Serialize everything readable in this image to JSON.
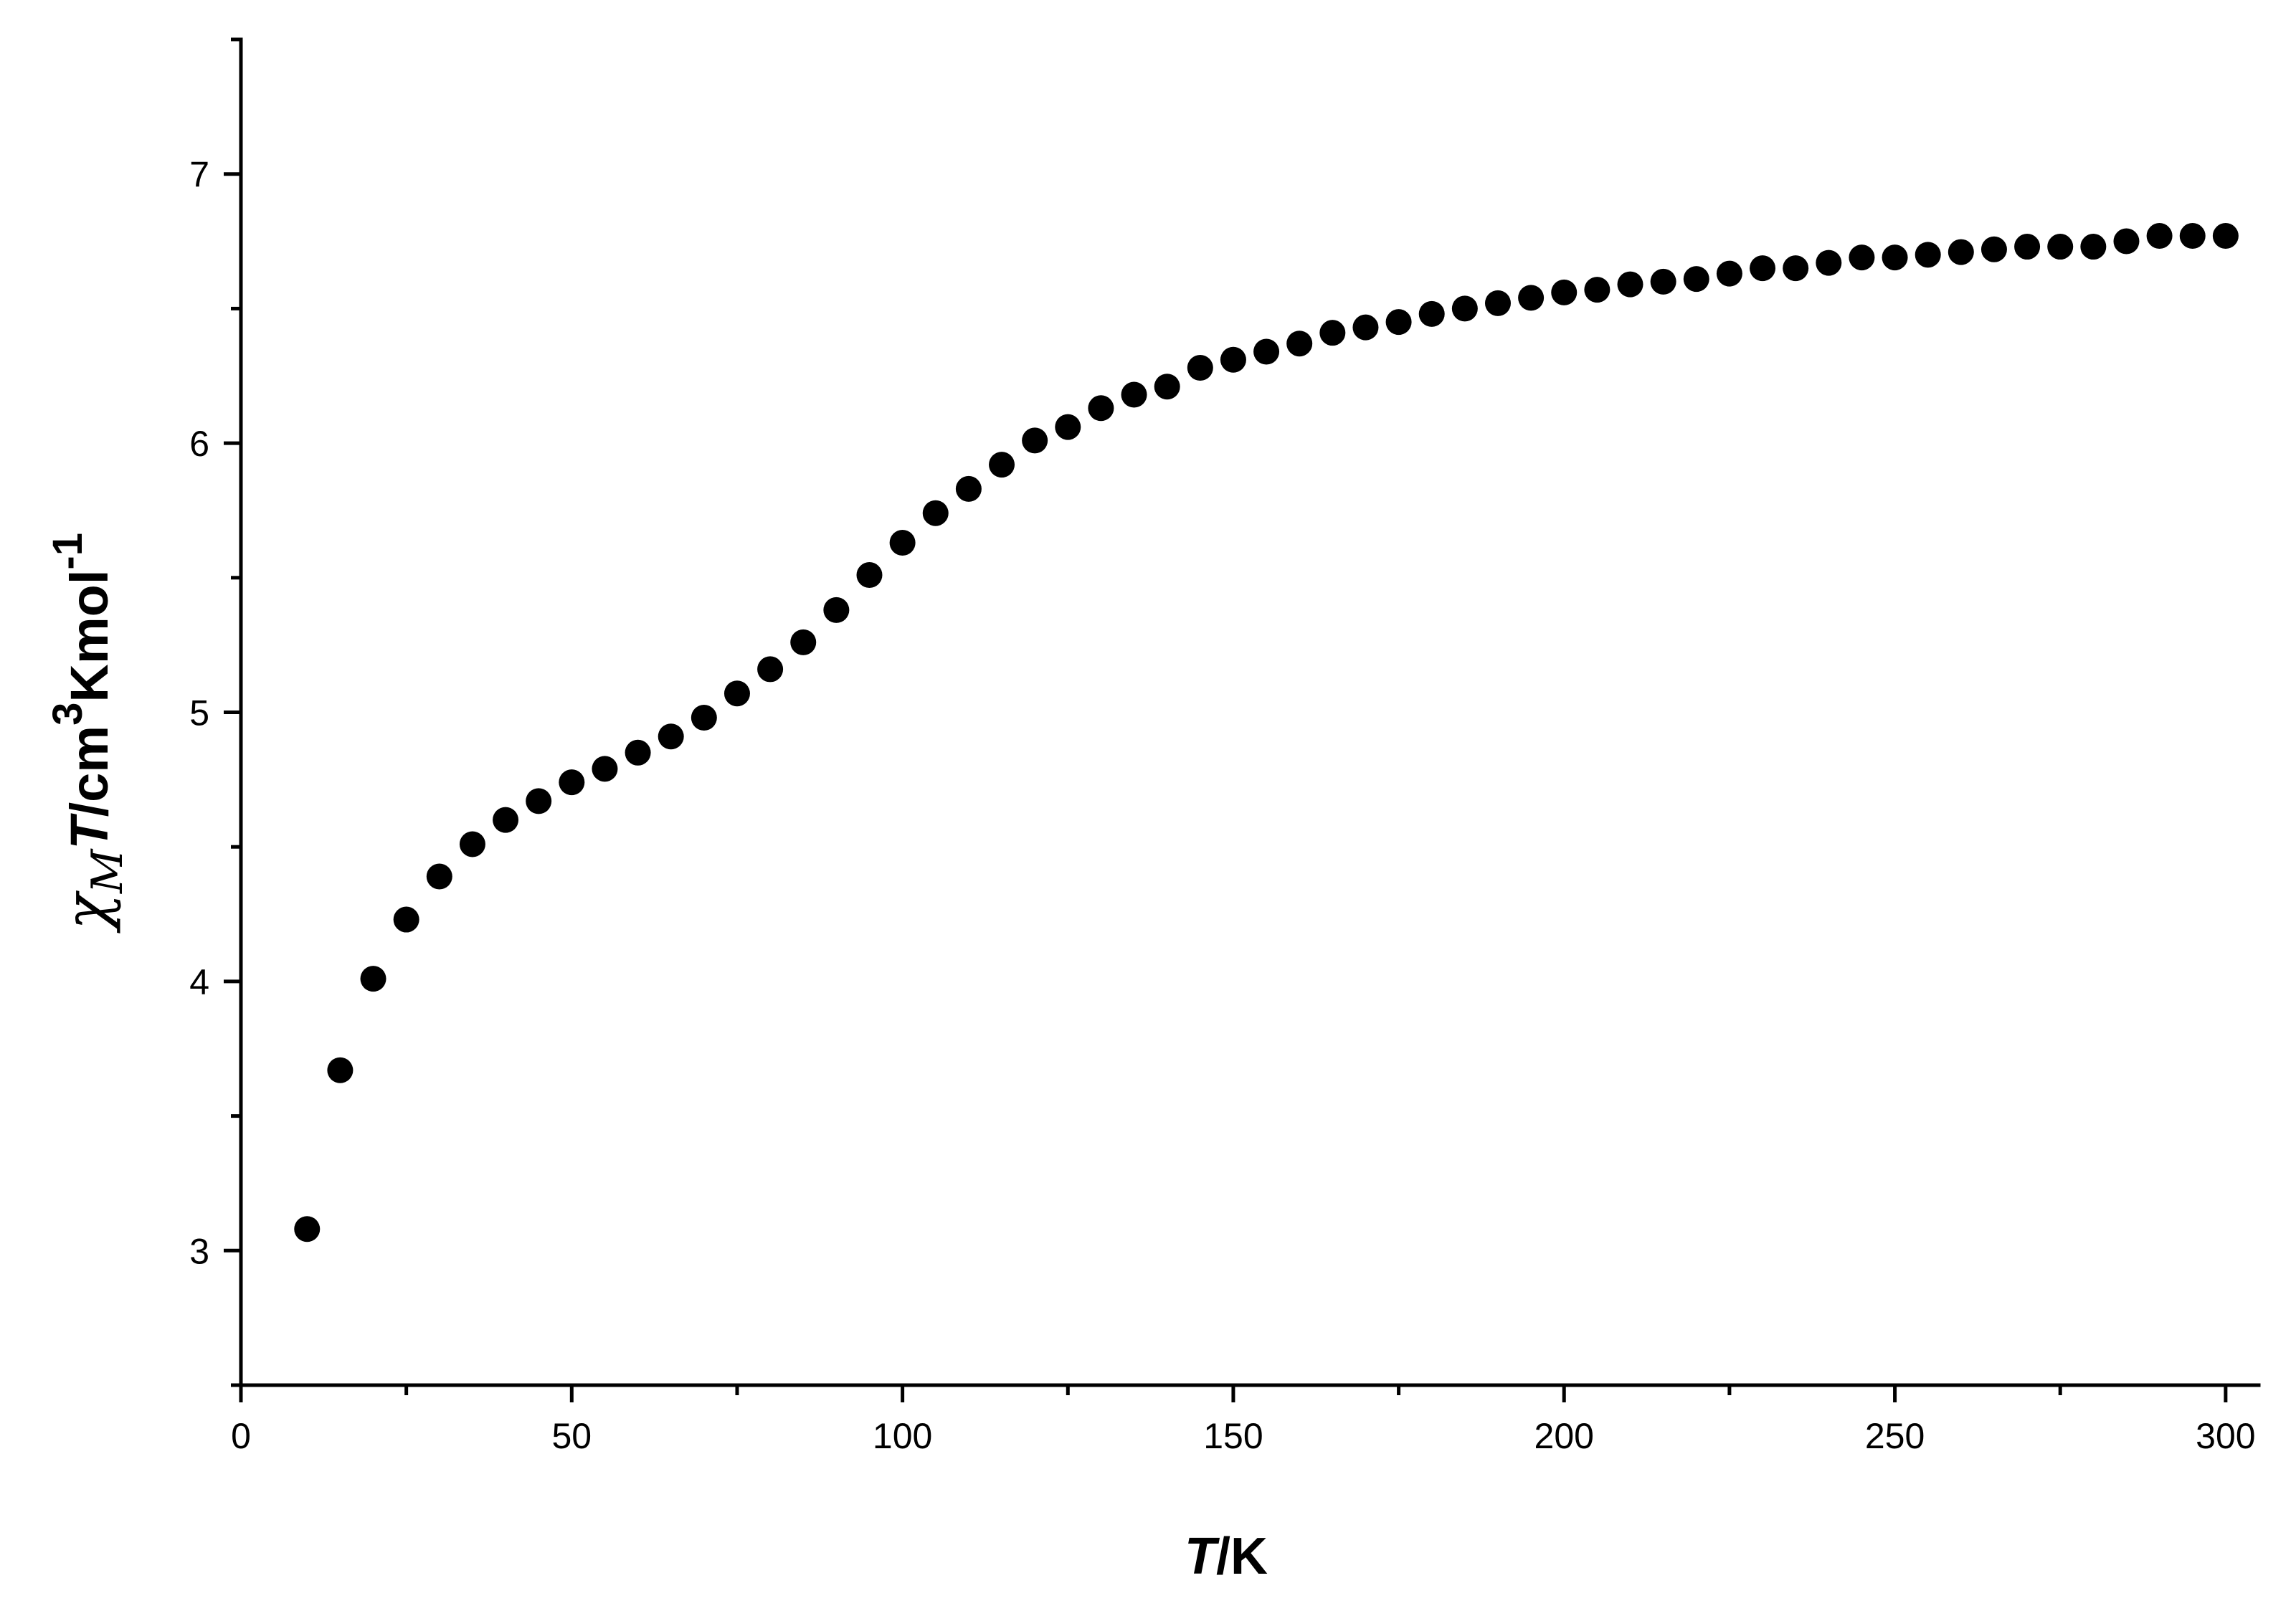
{
  "chart_data": {
    "type": "scatter",
    "xlabel": "T/K",
    "ylabel": "χMT/cm3Kmol-1",
    "xlabel_parts": {
      "italic": "T",
      "rest": "/K"
    },
    "ylabel_parts": {
      "chi": "χ",
      "sub": "M",
      "italic": "T",
      "unit": "/cm",
      "sup1": "3",
      "unit2": "Kmol",
      "sup2": "-1"
    },
    "xlim": [
      0,
      305
    ],
    "ylim": [
      2.5,
      7.5
    ],
    "xticks": [
      0,
      50,
      100,
      150,
      200,
      250,
      300
    ],
    "yticks": [
      3,
      4,
      5,
      6,
      7
    ],
    "grid": false,
    "marker_color": "#000000",
    "x": [
      10,
      15,
      20,
      25,
      30,
      35,
      40,
      45,
      50,
      55,
      60,
      65,
      70,
      75,
      80,
      85,
      90,
      95,
      100,
      105,
      110,
      115,
      120,
      125,
      130,
      135,
      140,
      145,
      150,
      155,
      160,
      165,
      170,
      175,
      180,
      185,
      190,
      195,
      200,
      205,
      210,
      215,
      220,
      225,
      230,
      235,
      240,
      245,
      250,
      255,
      260,
      265,
      270,
      275,
      280,
      285,
      290,
      295,
      300
    ],
    "y": [
      3.08,
      3.67,
      4.01,
      4.23,
      4.39,
      4.51,
      4.6,
      4.67,
      4.74,
      4.79,
      4.85,
      4.91,
      4.98,
      5.07,
      5.16,
      5.26,
      5.38,
      5.51,
      5.63,
      5.74,
      5.83,
      5.92,
      6.01,
      6.06,
      6.13,
      6.18,
      6.21,
      6.28,
      6.31,
      6.34,
      6.37,
      6.41,
      6.43,
      6.45,
      6.48,
      6.5,
      6.52,
      6.54,
      6.56,
      6.57,
      6.59,
      6.6,
      6.61,
      6.63,
      6.65,
      6.65,
      6.67,
      6.69,
      6.69,
      6.7,
      6.71,
      6.72,
      6.73,
      6.73,
      6.73,
      6.75,
      6.77,
      6.77,
      6.77
    ]
  }
}
